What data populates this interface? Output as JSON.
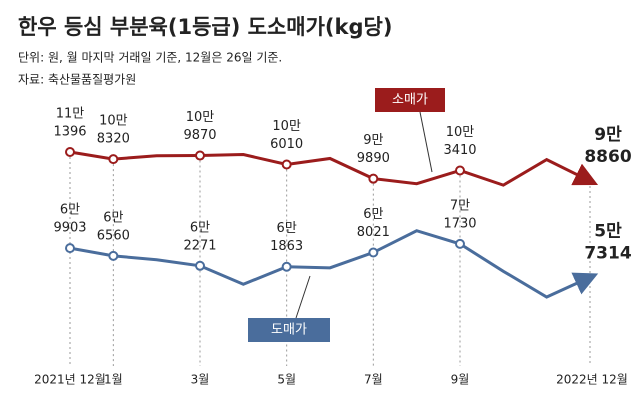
{
  "chart_data": {
    "type": "line",
    "title": "한우 등심 부분육(1등급) 도소매가(kg당)",
    "subtitle": "단위: 원, 월 마지막 거래일 기준, 12월은 26일 기준.",
    "source": "자료: 축산물품질평가원",
    "categories": [
      "2021년 12월",
      "1월",
      null,
      "3월",
      null,
      "5월",
      null,
      "7월",
      null,
      "9월",
      null,
      null,
      "2022년 12월"
    ],
    "series": [
      {
        "name": "소매가",
        "color": "#9b1c1c",
        "values": [
          111396,
          108320,
          109800,
          109870,
          110300,
          106010,
          108600,
          99890,
          97700,
          103410,
          97100,
          108100,
          98860
        ],
        "value_labels": [
          [
            "11만",
            "1396"
          ],
          [
            "10만",
            "8320"
          ],
          null,
          [
            "10만",
            "9870"
          ],
          null,
          [
            "10만",
            "6010"
          ],
          null,
          [
            "9만",
            "9890"
          ],
          null,
          [
            "10만",
            "3410"
          ],
          null,
          null,
          [
            "9만",
            "8860"
          ]
        ]
      },
      {
        "name": "도매가",
        "color": "#4a6d9c",
        "values": [
          69903,
          66560,
          64900,
          62271,
          54300,
          61863,
          61400,
          68021,
          77400,
          71730,
          59900,
          48800,
          57314
        ],
        "value_labels": [
          [
            "6만",
            "9903"
          ],
          [
            "6만",
            "6560"
          ],
          null,
          [
            "6만",
            "2271"
          ],
          null,
          [
            "6만",
            "1863"
          ],
          null,
          [
            "6만",
            "8021"
          ],
          null,
          [
            "7만",
            "1730"
          ],
          null,
          null,
          [
            "5만",
            "7314"
          ]
        ]
      }
    ]
  }
}
